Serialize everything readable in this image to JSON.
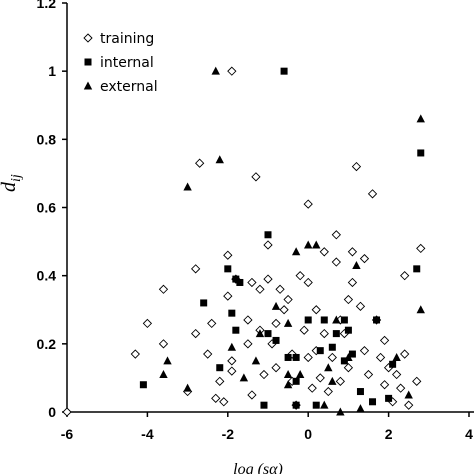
{
  "chart_data": {
    "type": "scatter",
    "xlabel": "log (sα)",
    "ylabel_main": "d",
    "ylabel_sub": "ij",
    "xlim": [
      -6,
      4
    ],
    "ylim": [
      0,
      1.2
    ],
    "x_ticks": [
      "-6",
      "-4",
      "-2",
      "0",
      "2",
      "4"
    ],
    "y_ticks": [
      "0",
      "0.2",
      "0.4",
      "0.6",
      "0.8",
      "1",
      "1.2"
    ],
    "legend_position": "top-left",
    "series": [
      {
        "name": "training",
        "marker": "diamond-open",
        "points": [
          [
            -6.0,
            0.0
          ],
          [
            -4.3,
            0.17
          ],
          [
            -4.0,
            0.26
          ],
          [
            -3.6,
            0.2
          ],
          [
            -3.6,
            0.36
          ],
          [
            -3.0,
            0.06
          ],
          [
            -2.8,
            0.23
          ],
          [
            -2.8,
            0.42
          ],
          [
            -2.7,
            0.73
          ],
          [
            -2.5,
            0.17
          ],
          [
            -2.4,
            0.26
          ],
          [
            -2.3,
            0.04
          ],
          [
            -2.2,
            0.09
          ],
          [
            -2.1,
            0.03
          ],
          [
            -1.9,
            1.0
          ],
          [
            -1.9,
            0.12
          ],
          [
            -2.0,
            0.34
          ],
          [
            -2.0,
            0.46
          ],
          [
            -1.8,
            0.39
          ],
          [
            -1.9,
            0.15
          ],
          [
            -1.5,
            0.2
          ],
          [
            -1.4,
            0.05
          ],
          [
            -1.5,
            0.27
          ],
          [
            -1.4,
            0.38
          ],
          [
            -1.3,
            0.69
          ],
          [
            -1.2,
            0.24
          ],
          [
            -1.2,
            0.36
          ],
          [
            -1.1,
            0.11
          ],
          [
            -1.0,
            0.49
          ],
          [
            -1.0,
            0.39
          ],
          [
            -0.9,
            0.2
          ],
          [
            -0.8,
            0.13
          ],
          [
            -0.8,
            0.26
          ],
          [
            -0.7,
            0.36
          ],
          [
            -0.6,
            0.3
          ],
          [
            -0.5,
            0.33
          ],
          [
            -0.4,
            0.17
          ],
          [
            -0.4,
            0.09
          ],
          [
            -0.3,
            0.02
          ],
          [
            -0.2,
            0.4
          ],
          [
            -0.1,
            0.24
          ],
          [
            0.0,
            0.61
          ],
          [
            0.0,
            0.38
          ],
          [
            0.0,
            0.16
          ],
          [
            0.1,
            0.07
          ],
          [
            0.2,
            0.3
          ],
          [
            0.2,
            0.18
          ],
          [
            0.3,
            0.1
          ],
          [
            0.4,
            0.23
          ],
          [
            0.4,
            0.47
          ],
          [
            0.5,
            0.06
          ],
          [
            0.6,
            0.16
          ],
          [
            0.7,
            0.52
          ],
          [
            0.7,
            0.44
          ],
          [
            0.8,
            0.27
          ],
          [
            0.8,
            0.09
          ],
          [
            0.9,
            0.23
          ],
          [
            1.0,
            0.13
          ],
          [
            1.0,
            0.33
          ],
          [
            1.1,
            0.47
          ],
          [
            1.1,
            0.38
          ],
          [
            1.2,
            0.72
          ],
          [
            1.3,
            0.31
          ],
          [
            1.4,
            0.18
          ],
          [
            1.5,
            0.11
          ],
          [
            1.4,
            0.45
          ],
          [
            1.6,
            0.64
          ],
          [
            1.7,
            0.27
          ],
          [
            1.8,
            0.16
          ],
          [
            1.9,
            0.08
          ],
          [
            1.9,
            0.21
          ],
          [
            2.0,
            0.13
          ],
          [
            2.1,
            0.03
          ],
          [
            2.2,
            0.11
          ],
          [
            2.3,
            0.07
          ],
          [
            2.4,
            0.17
          ],
          [
            2.5,
            0.02
          ],
          [
            2.4,
            0.4
          ],
          [
            2.8,
            0.48
          ],
          [
            2.7,
            0.09
          ]
        ]
      },
      {
        "name": "internal",
        "marker": "square-filled",
        "points": [
          [
            -4.1,
            0.08
          ],
          [
            -2.6,
            0.32
          ],
          [
            -2.2,
            0.13
          ],
          [
            -2.0,
            0.42
          ],
          [
            -1.9,
            0.29
          ],
          [
            -1.8,
            0.24
          ],
          [
            -1.8,
            0.39
          ],
          [
            -1.7,
            0.38
          ],
          [
            -1.0,
            0.52
          ],
          [
            -1.0,
            0.23
          ],
          [
            -1.1,
            0.02
          ],
          [
            -0.8,
            0.21
          ],
          [
            -0.6,
            1.0
          ],
          [
            -0.5,
            0.16
          ],
          [
            -0.3,
            0.02
          ],
          [
            -0.3,
            0.09
          ],
          [
            -0.3,
            0.16
          ],
          [
            0.0,
            0.27
          ],
          [
            0.2,
            0.02
          ],
          [
            0.3,
            0.18
          ],
          [
            0.4,
            0.27
          ],
          [
            0.6,
            0.19
          ],
          [
            0.7,
            0.23
          ],
          [
            0.9,
            0.27
          ],
          [
            0.9,
            0.15
          ],
          [
            1.0,
            0.24
          ],
          [
            1.1,
            0.17
          ],
          [
            1.3,
            0.06
          ],
          [
            1.6,
            0.03
          ],
          [
            1.7,
            0.27
          ],
          [
            2.0,
            0.04
          ],
          [
            2.1,
            0.14
          ],
          [
            2.7,
            0.42
          ],
          [
            2.8,
            0.76
          ]
        ]
      },
      {
        "name": "external",
        "marker": "triangle-filled",
        "points": [
          [
            -3.6,
            0.11
          ],
          [
            -3.5,
            0.15
          ],
          [
            -3.0,
            0.07
          ],
          [
            -3.0,
            0.66
          ],
          [
            -2.2,
            0.74
          ],
          [
            -2.3,
            1.0
          ],
          [
            -1.9,
            0.19
          ],
          [
            -1.6,
            0.1
          ],
          [
            -1.3,
            0.15
          ],
          [
            -1.2,
            0.23
          ],
          [
            -0.8,
            0.31
          ],
          [
            -0.5,
            0.26
          ],
          [
            -0.5,
            0.11
          ],
          [
            -0.5,
            0.08
          ],
          [
            -0.3,
            0.47
          ],
          [
            -0.2,
            0.11
          ],
          [
            0.0,
            0.49
          ],
          [
            0.2,
            0.49
          ],
          [
            0.4,
            0.02
          ],
          [
            0.5,
            0.13
          ],
          [
            0.6,
            0.09
          ],
          [
            0.7,
            0.27
          ],
          [
            0.8,
            0.0
          ],
          [
            1.0,
            0.16
          ],
          [
            1.2,
            0.43
          ],
          [
            1.3,
            0.01
          ],
          [
            2.2,
            0.16
          ],
          [
            2.5,
            0.05
          ],
          [
            2.8,
            0.86
          ],
          [
            2.8,
            0.3
          ]
        ]
      }
    ]
  }
}
